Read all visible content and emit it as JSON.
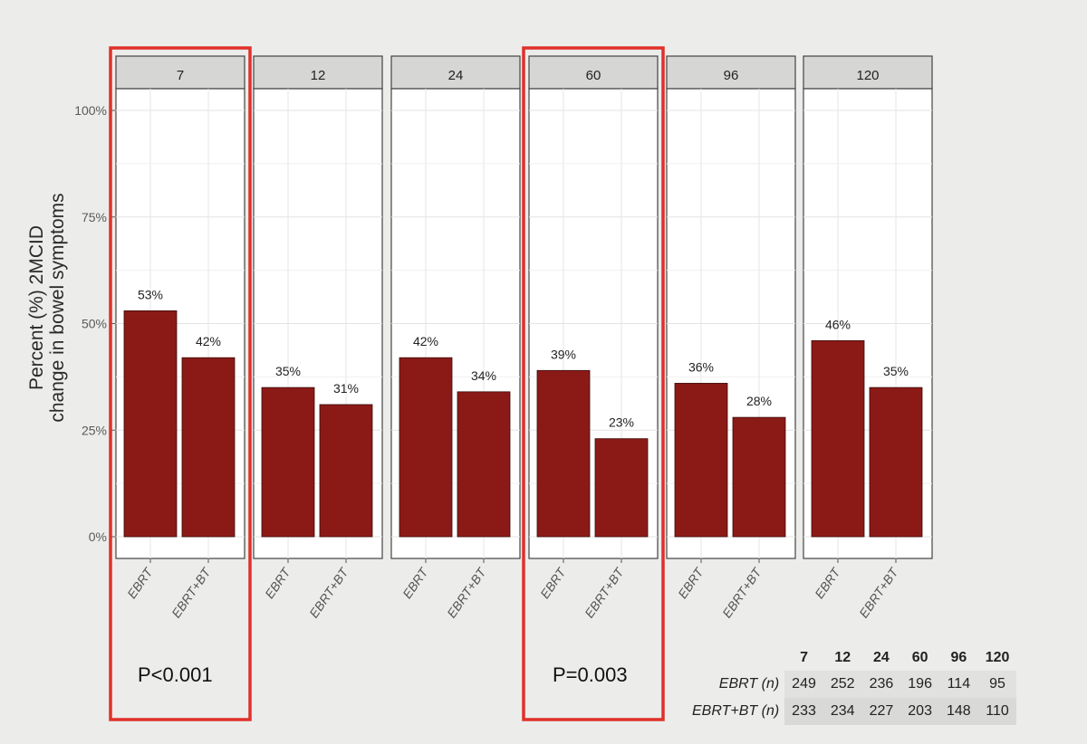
{
  "chart_data": {
    "type": "bar",
    "facets": [
      "7",
      "12",
      "24",
      "60",
      "96",
      "120"
    ],
    "categories": [
      "EBRT",
      "EBRT+BT"
    ],
    "values": [
      [
        53,
        42
      ],
      [
        35,
        31
      ],
      [
        42,
        34
      ],
      [
        39,
        23
      ],
      [
        36,
        28
      ],
      [
        46,
        35
      ]
    ],
    "value_labels": [
      [
        "53%",
        "42%"
      ],
      [
        "35%",
        "31%"
      ],
      [
        "42%",
        "34%"
      ],
      [
        "39%",
        "23%"
      ],
      [
        "36%",
        "28%"
      ],
      [
        "46%",
        "35%"
      ]
    ],
    "ylabel": [
      "Percent (%) 2MCID",
      "change in bowel symptoms"
    ],
    "xlabel": "",
    "ylim": [
      0,
      110
    ],
    "yticks": [
      0,
      25,
      50,
      75,
      100
    ],
    "ytick_labels": [
      "0%",
      "25%",
      "50%",
      "75%",
      "100%"
    ],
    "bar_color": "#8b1a17",
    "highlight_color": "#e0302a",
    "highlighted_facets": [
      "7",
      "60"
    ],
    "grid": true,
    "annotations": [
      {
        "facet": "7",
        "text": "P<0.001"
      },
      {
        "facet": "60",
        "text": "P=0.003"
      }
    ]
  },
  "n_table": {
    "header": [
      "7",
      "12",
      "24",
      "60",
      "96",
      "120"
    ],
    "rows": [
      {
        "label": "EBRT (n)",
        "values": [
          "249",
          "252",
          "236",
          "196",
          "114",
          "95"
        ]
      },
      {
        "label": "EBRT+BT (n)",
        "values": [
          "233",
          "234",
          "227",
          "203",
          "148",
          "110"
        ]
      }
    ]
  }
}
